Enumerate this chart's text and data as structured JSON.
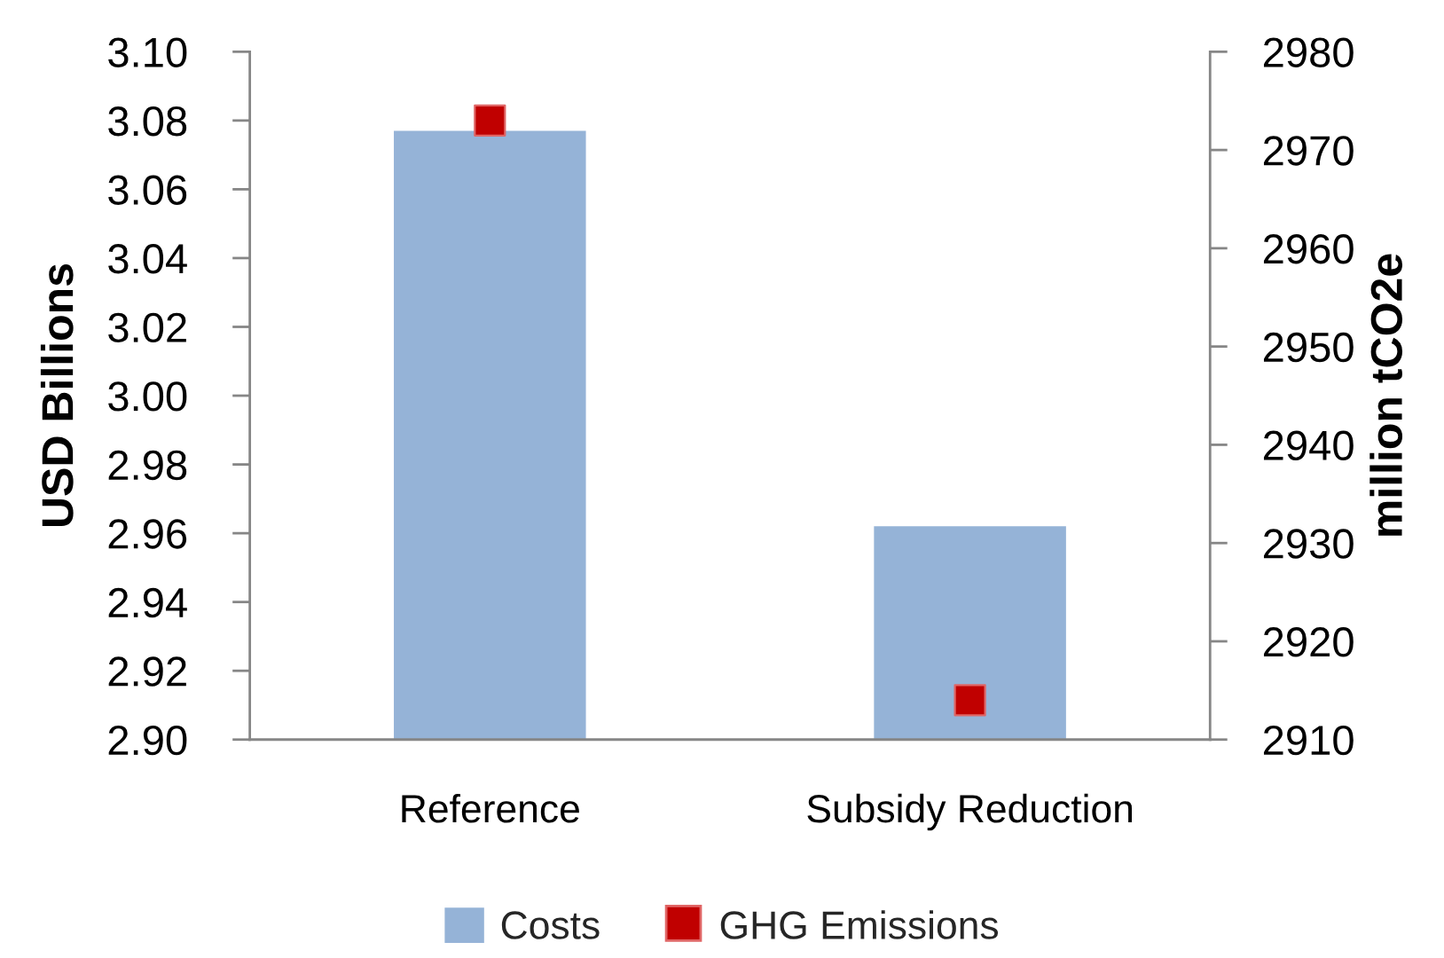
{
  "chart_data": {
    "type": "bar",
    "categories": [
      "Reference",
      "Subsidy Reduction"
    ],
    "ylabel": "USD Billions",
    "y2label": "million tCO2e",
    "series": [
      {
        "name": "Costs",
        "color": "#95b3d7",
        "values": [
          3.077,
          2.962
        ]
      },
      {
        "name": "GHG Emissions",
        "type": "scatter",
        "axis": "y2",
        "color": "#c00000",
        "values": [
          2973,
          2914
        ]
      }
    ],
    "ylim": [
      2.9,
      3.1
    ],
    "yticks": [
      {
        "value": 2.9,
        "label": "2.90"
      },
      {
        "value": 2.92,
        "label": "2.92"
      },
      {
        "value": 2.94,
        "label": "2.94"
      },
      {
        "value": 2.96,
        "label": "2.96"
      },
      {
        "value": 2.98,
        "label": "2.98"
      },
      {
        "value": 3.0,
        "label": "3.00"
      },
      {
        "value": 3.02,
        "label": "3.02"
      },
      {
        "value": 3.04,
        "label": "3.04"
      },
      {
        "value": 3.06,
        "label": "3.06"
      },
      {
        "value": 3.08,
        "label": "3.08"
      },
      {
        "value": 3.1,
        "label": "3.10"
      }
    ],
    "y2lim": [
      2910,
      2980
    ],
    "y2ticks": [
      2910,
      2920,
      2930,
      2940,
      2950,
      2960,
      2970,
      2980
    ],
    "marker": "square",
    "legend": "bottom",
    "grid": false
  }
}
